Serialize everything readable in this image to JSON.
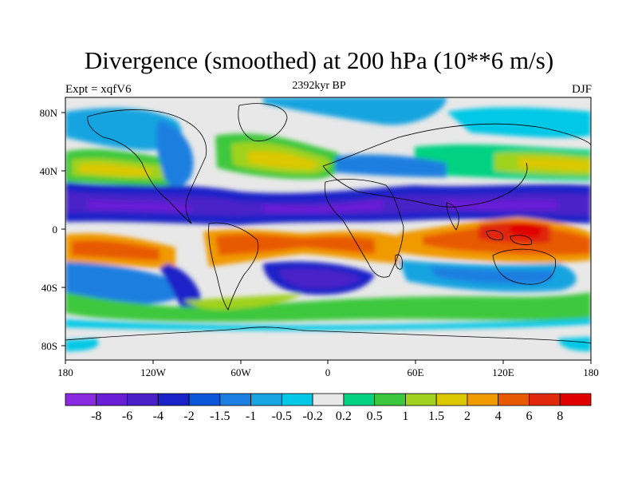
{
  "title": "Divergence (smoothed) at 200 hPa (10**6 m/s)",
  "subtitle_left": "Expt = xqfV6",
  "subtitle_center": "2392kyr BP",
  "subtitle_right": "DJF",
  "map": {
    "lat_ticks": [
      "80N",
      "40N",
      "0",
      "40S",
      "80S"
    ],
    "lon_ticks": [
      "180",
      "120W",
      "60W",
      "0",
      "60E",
      "120E",
      "180"
    ],
    "background_color": "#e8e8e8",
    "coast_color": "#000000"
  },
  "colorbar": {
    "labels": [
      "-8",
      "-6",
      "-4",
      "-2",
      "-1.5",
      "-1",
      "-0.5",
      "-0.2",
      "0.2",
      "0.5",
      "1",
      "1.5",
      "2",
      "4",
      "6",
      "8"
    ],
    "colors": [
      "#8a2be2",
      "#6a1fd6",
      "#4a20c8",
      "#1a23c8",
      "#0a55d8",
      "#1a7fe0",
      "#18a4e0",
      "#00c8e6",
      "#e8e8e8",
      "#00d282",
      "#3cc83c",
      "#a0d21e",
      "#dcc800",
      "#f09a00",
      "#e85a00",
      "#e0280a",
      "#e00000"
    ]
  }
}
